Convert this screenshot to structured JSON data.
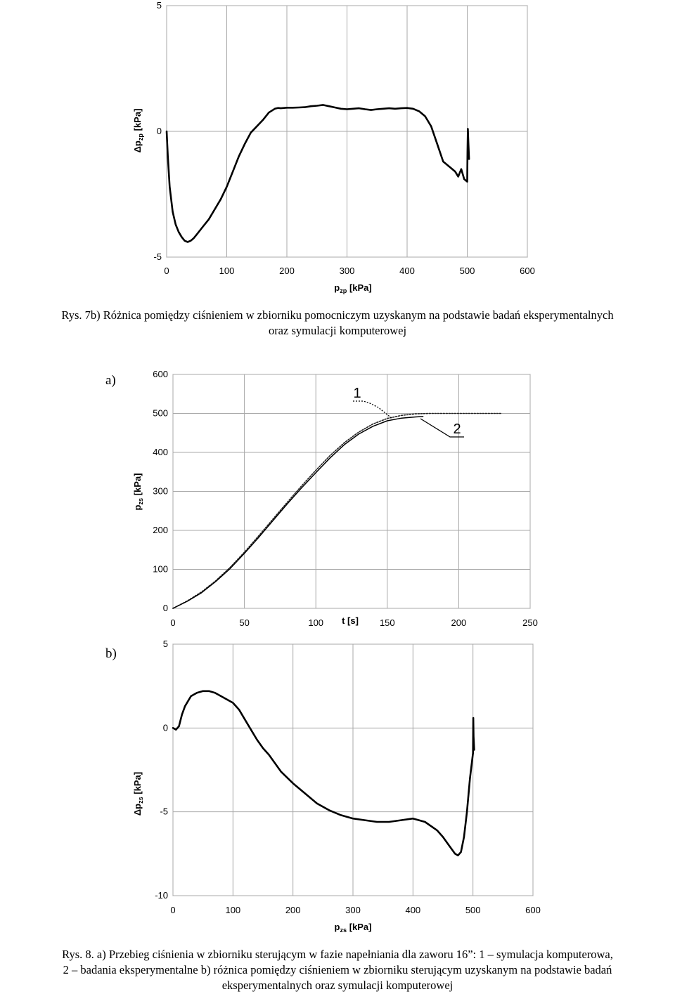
{
  "captions": {
    "fig7b_line1": "Rys.  7b) Różnica pomiędzy ciśnieniem w zbiorniku pomocniczym uzyskanym na podstawie badań eksperymentalnych",
    "fig7b_line2": "oraz symulacji komputerowej",
    "fig8_line1": "Rys. 8. a) Przebieg ciśnienia w zbiorniku sterującym w fazie napełniania dla zaworu 16”: 1 – symulacja komputerowa,",
    "fig8_line2": "2 – badania eksperymentalne b) różnica pomiędzy ciśnieniem w zbiorniku sterującym uzyskanym na podstawie badań",
    "fig8_line3": "eksperymentalnych oraz symulacji komputerowej"
  },
  "panel_labels": {
    "a": "a)",
    "b": "b)"
  },
  "chart_data": [
    {
      "type": "line",
      "ylabel_symbol": "Δp",
      "ylabel_sub": "zp",
      "ylabel_unit": " [kPa]",
      "xlabel_main": "p",
      "xlabel_sub": "zp",
      "xlabel_unit": " [kPa]",
      "xlim": [
        0,
        600
      ],
      "ylim": [
        -5,
        5
      ],
      "xticks": [
        0,
        100,
        200,
        300,
        400,
        500,
        600
      ],
      "yticks": [
        5,
        0,
        -5
      ],
      "grid": true,
      "series": [
        {
          "x": [
            0,
            2,
            5,
            10,
            15,
            20,
            25,
            30,
            35,
            40,
            45,
            50,
            60,
            70,
            80,
            90,
            100,
            110,
            120,
            130,
            140,
            150,
            160,
            170,
            180,
            185,
            190,
            200,
            210,
            220,
            230,
            240,
            250,
            260,
            270,
            280,
            290,
            300,
            310,
            320,
            330,
            340,
            350,
            360,
            370,
            380,
            390,
            400,
            410,
            420,
            430,
            440,
            450,
            460,
            470,
            480,
            485,
            490,
            495,
            500,
            500.5,
            501,
            502,
            503
          ],
          "y": [
            0,
            -1.0,
            -2.2,
            -3.2,
            -3.7,
            -4.0,
            -4.2,
            -4.35,
            -4.4,
            -4.35,
            -4.25,
            -4.1,
            -3.8,
            -3.5,
            -3.1,
            -2.7,
            -2.2,
            -1.6,
            -1.0,
            -0.5,
            -0.05,
            0.2,
            0.45,
            0.75,
            0.9,
            0.93,
            0.92,
            0.94,
            0.94,
            0.95,
            0.96,
            1.0,
            1.02,
            1.05,
            1.0,
            0.95,
            0.9,
            0.88,
            0.9,
            0.92,
            0.88,
            0.85,
            0.88,
            0.9,
            0.92,
            0.9,
            0.92,
            0.93,
            0.9,
            0.8,
            0.6,
            0.2,
            -0.5,
            -1.2,
            -1.4,
            -1.6,
            -1.8,
            -1.5,
            -1.9,
            -2.0,
            -0.8,
            0.1,
            -0.5,
            -1.1
          ]
        }
      ]
    },
    {
      "type": "line",
      "ylabel_main": "p",
      "ylabel_sub": "zs",
      "ylabel_unit": " [kPa]",
      "xlabel": "t [s]",
      "xlim": [
        0,
        250
      ],
      "ylim": [
        0,
        600
      ],
      "xticks": [
        0,
        50,
        100,
        150,
        200,
        250
      ],
      "yticks": [
        600,
        500,
        400,
        300,
        200,
        100,
        0
      ],
      "grid": true,
      "annotations": [
        "1",
        "2"
      ],
      "series": [
        {
          "name": "1",
          "x": [
            0,
            10,
            20,
            30,
            40,
            50,
            60,
            70,
            80,
            90,
            100,
            110,
            120,
            130,
            140,
            150,
            160,
            170,
            180,
            190,
            200,
            210,
            220,
            230
          ],
          "y": [
            0,
            19,
            42,
            71,
            105,
            144,
            186,
            229,
            272,
            314,
            354,
            392,
            425,
            452,
            473,
            487,
            495,
            499,
            500,
            500,
            500,
            500,
            500,
            500
          ]
        },
        {
          "name": "2",
          "x": [
            0,
            10,
            20,
            30,
            40,
            50,
            60,
            70,
            80,
            90,
            100,
            110,
            120,
            130,
            140,
            150,
            160,
            170,
            175
          ],
          "y": [
            0,
            18,
            40,
            69,
            102,
            141,
            182,
            225,
            268,
            309,
            348,
            386,
            420,
            447,
            467,
            481,
            488,
            491,
            492
          ]
        }
      ]
    },
    {
      "type": "line",
      "ylabel_symbol": "Δp",
      "ylabel_sub": "zs",
      "ylabel_unit": " [kPa]",
      "xlabel_main": "p",
      "xlabel_sub": "zs",
      "xlabel_unit": " [kPa]",
      "xlim": [
        0,
        600
      ],
      "ylim": [
        -10,
        5
      ],
      "xticks": [
        0,
        100,
        200,
        300,
        400,
        500,
        600
      ],
      "yticks": [
        5,
        0,
        -5,
        -10
      ],
      "grid": true,
      "series": [
        {
          "x": [
            0,
            5,
            10,
            15,
            20,
            30,
            40,
            50,
            60,
            70,
            80,
            90,
            100,
            110,
            120,
            130,
            140,
            150,
            160,
            180,
            200,
            220,
            240,
            260,
            280,
            300,
            320,
            340,
            360,
            380,
            400,
            420,
            440,
            450,
            460,
            470,
            475,
            480,
            485,
            490,
            495,
            500,
            500.5,
            501,
            502
          ],
          "y": [
            0,
            -0.1,
            0.1,
            0.8,
            1.3,
            1.9,
            2.1,
            2.2,
            2.2,
            2.1,
            1.9,
            1.7,
            1.5,
            1.1,
            0.5,
            -0.1,
            -0.7,
            -1.2,
            -1.6,
            -2.6,
            -3.3,
            -3.9,
            -4.5,
            -4.9,
            -5.2,
            -5.4,
            -5.5,
            -5.6,
            -5.6,
            -5.5,
            -5.4,
            -5.6,
            -6.1,
            -6.5,
            -7.0,
            -7.5,
            -7.6,
            -7.4,
            -6.5,
            -5.0,
            -3.0,
            -1.5,
            0.6,
            -0.5,
            -1.3
          ]
        }
      ]
    }
  ]
}
